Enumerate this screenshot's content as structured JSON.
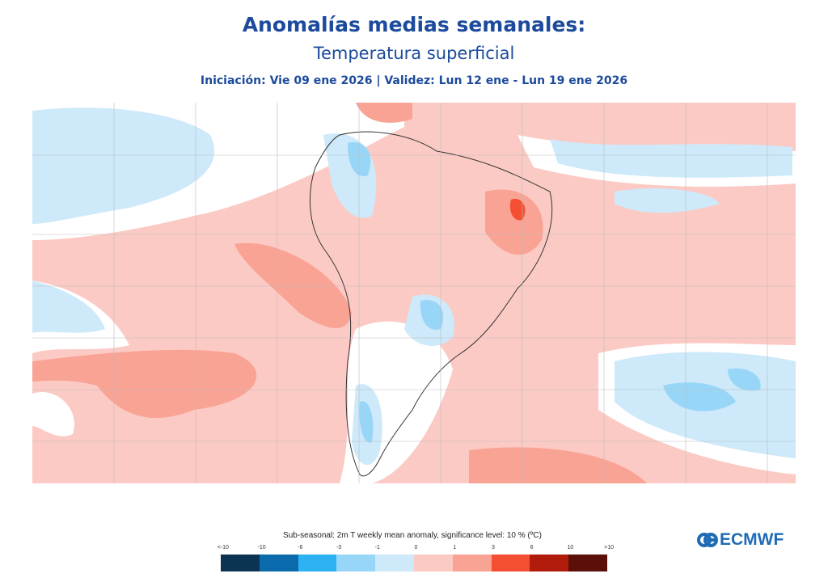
{
  "header": {
    "title": "Anomalías medias semanales:",
    "subtitle": "Temperatura superficial",
    "dates": "Iniciación:  Vie 09 ene 2026 | Validez: Lun 12 ene - Lun 19 ene 2026"
  },
  "legend": {
    "title": "Sub-seasonal: 2m T weekly mean anomaly, significance level: 10 % (ºC)",
    "ticks": [
      "<-10",
      "-10",
      "-6",
      "-3",
      "-1",
      "0",
      "1",
      "3",
      "6",
      "10",
      ">10"
    ],
    "colors": [
      "#0b3452",
      "#0b6aab",
      "#2cb2f3",
      "#98d6f8",
      "#cde9fa",
      "#fccac4",
      "#f9a394",
      "#f54f33",
      "#b11b0b",
      "#5a0f08"
    ]
  },
  "logo": {
    "text": "ECMWF"
  },
  "map": {
    "region": "South America",
    "variable": "2m temperature weekly mean anomaly"
  }
}
